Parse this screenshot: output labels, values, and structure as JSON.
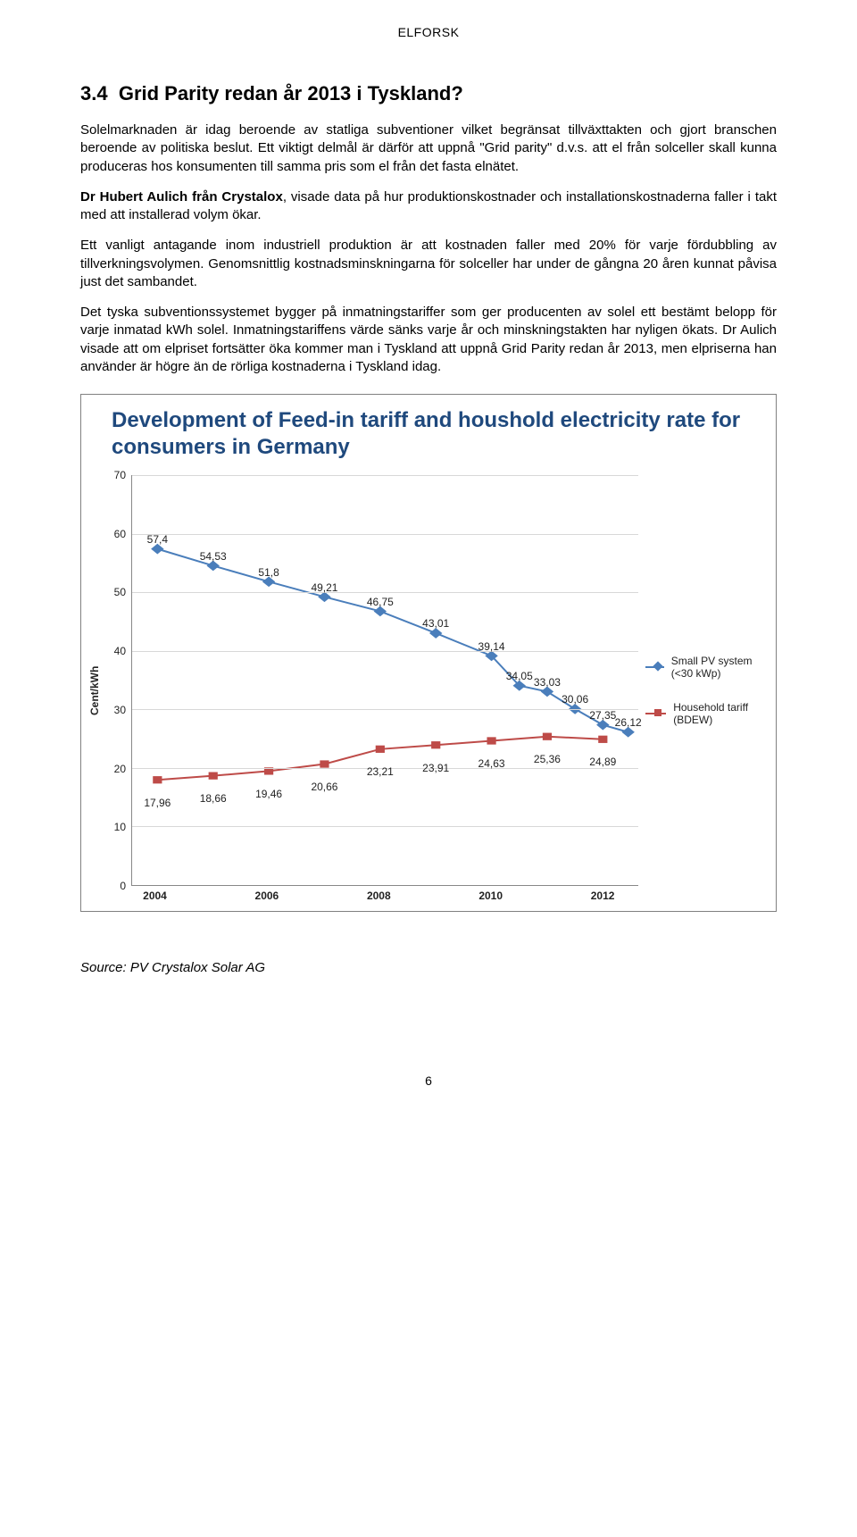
{
  "header": {
    "label": "ELFORSK"
  },
  "section": {
    "number": "3.4",
    "title": "Grid Parity redan år 2013 i Tyskland?"
  },
  "paragraphs": {
    "p1": "Solelmarknaden är idag beroende av statliga subventioner vilket begränsat tillväxttakten och gjort branschen beroende av politiska beslut. Ett viktigt delmål är därför att uppnå \"Grid parity\" d.v.s. att el från solceller skall kunna produceras hos konsumenten till samma pris som el från det fasta elnätet.",
    "p2a": "Dr Hubert Aulich från Crystalox",
    "p2b": ", visade data på hur produktionskostnader och installationskostnaderna faller i takt med att installerad volym ökar.",
    "p3": "Ett vanligt antagande inom industriell produktion är att kostnaden faller med 20% för varje fördubbling av tillverkningsvolymen. Genomsnittlig kostnadsminskningarna för solceller har under de gångna 20 åren kunnat påvisa just det sambandet.",
    "p4": "Det tyska subventionssystemet bygger på inmatningstariffer som ger producenten av solel ett bestämt belopp för varje inmatad kWh solel. Inmatningstariffens värde sänks varje år och minskningstakten har nyligen ökats. Dr Aulich visade att om elpriset fortsätter öka kommer man i Tyskland att uppnå Grid Parity redan år 2013, men elpriserna han använder är högre än de rörliga kostnaderna i Tyskland idag."
  },
  "chart": {
    "type": "line",
    "title": "Development of Feed-in tariff and houshold electricity rate for consumers in Germany",
    "title_color": "#1f497d",
    "title_fontsize": 24,
    "y_label": "Cent/kWh",
    "y_min": 0,
    "y_max": 70,
    "y_tick_step": 10,
    "y_ticks": [
      0,
      10,
      20,
      30,
      40,
      50,
      60,
      70
    ],
    "x_ticks": [
      "2004",
      "2006",
      "2008",
      "2010",
      "2012"
    ],
    "x_tick_positions_pct": [
      5,
      27,
      49,
      71,
      93
    ],
    "grid_color": "#d8d8d8",
    "axis_color": "#888888",
    "background_color": "#ffffff",
    "label_fontsize": 12,
    "series": {
      "pv": {
        "name": "Small PV system (<30 kWp)",
        "color": "#4a7ebb",
        "marker": "diamond",
        "line_width": 2,
        "marker_size": 7,
        "x_pct": [
          5,
          16,
          27,
          38,
          49,
          60,
          71,
          76.5,
          82,
          87.5,
          93
        ],
        "y_val": [
          57.4,
          54.53,
          51.8,
          49.21,
          46.75,
          43.01,
          39.14,
          34.05,
          33.03,
          30.06,
          27.35
        ],
        "extra_point": {
          "x_pct": 98,
          "y_val": 26.12
        },
        "labels": [
          "57,4",
          "54,53",
          "51,8",
          "49,21",
          "46,75",
          "43,01",
          "39,14",
          "34,05",
          "33,03",
          "30,06",
          "27,35",
          "26,12"
        ]
      },
      "household": {
        "name": "Household tariff (BDEW)",
        "color": "#be4b48",
        "marker": "square",
        "line_width": 2,
        "marker_size": 7,
        "x_pct": [
          5,
          16,
          27,
          38,
          49,
          60,
          71,
          82,
          93
        ],
        "y_val": [
          17.96,
          18.66,
          19.46,
          20.66,
          23.21,
          23.91,
          24.63,
          25.36,
          24.89
        ],
        "labels": [
          "17,96",
          "18,66",
          "19,46",
          "20,66",
          "23,21",
          "23,91",
          "24,63",
          "25,36",
          "24,89"
        ]
      }
    }
  },
  "source": "Source: PV Crystalox Solar AG",
  "page_number": "6"
}
